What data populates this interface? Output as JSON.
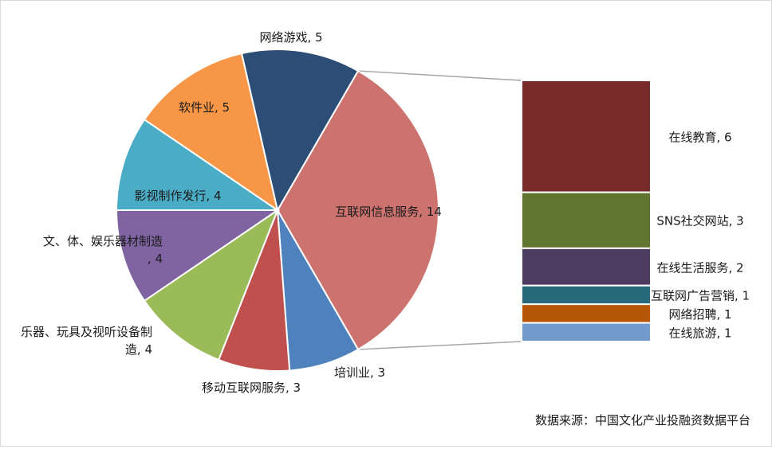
{
  "chart_data": [
    {
      "type": "pie",
      "slices": [
        {
          "label": "互联网信息服务, 14",
          "value": 14,
          "color": "#cc7370"
        },
        {
          "label": "培训业, 3",
          "value": 3,
          "color": "#4f81bd"
        },
        {
          "label": "移动互联网服务, 3",
          "value": 3,
          "color": "#c0504d"
        },
        {
          "label": "乐器、玩具及视听设备制造, 4",
          "value": 4,
          "color": "#9bbb59"
        },
        {
          "label": "文、体、娱乐器材制造, 4",
          "value": 4,
          "color": "#8064a2"
        },
        {
          "label": "影视制作发行, 4",
          "value": 4,
          "color": "#4bacc6"
        },
        {
          "label": "软件业, 5",
          "value": 5,
          "color": "#f79646"
        },
        {
          "label": "网络游戏, 5",
          "value": 5,
          "color": "#2c4d75"
        }
      ]
    },
    {
      "type": "bar",
      "categories": [
        "在线教育, 6",
        "SNS社交网站, 3",
        "在线生活服务, 2",
        "互联网广告营销, 1",
        "网络招聘, 1",
        "在线旅游, 1"
      ],
      "values": [
        6,
        3,
        2,
        1,
        1,
        1
      ],
      "colors": [
        "#772c2a",
        "#5f7530",
        "#4d3b62",
        "#276a7c",
        "#b65708",
        "#729aca"
      ]
    }
  ],
  "source_text": "数据来源：中国文化产业投融资数据平台"
}
